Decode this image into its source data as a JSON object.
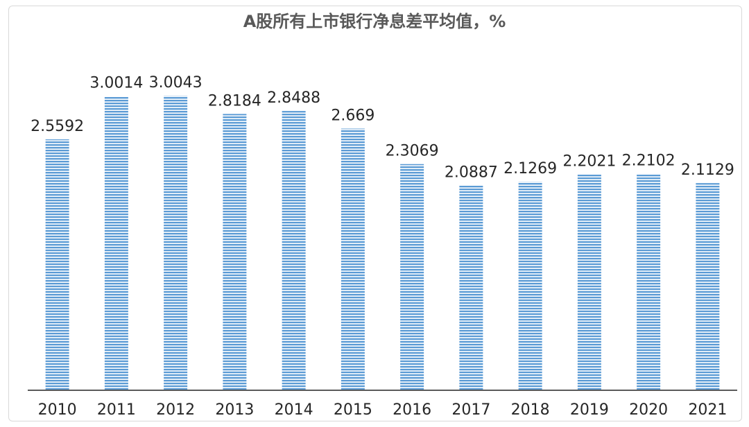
{
  "chart_data": {
    "type": "bar",
    "title": "A股所有上市银行净息差平均值，%",
    "xlabel": "",
    "ylabel": "",
    "categories": [
      "2010",
      "2011",
      "2012",
      "2013",
      "2014",
      "2015",
      "2016",
      "2017",
      "2018",
      "2019",
      "2020",
      "2021"
    ],
    "values": [
      2.5592,
      3.0014,
      3.0043,
      2.8184,
      2.8488,
      2.669,
      2.3069,
      2.0887,
      2.1269,
      2.2021,
      2.2102,
      2.1129
    ],
    "value_labels": [
      "2.5592",
      "3.0014",
      "3.0043",
      "2.8184",
      "2.8488",
      "2.669",
      "2.3069",
      "2.0887",
      "2.1269",
      "2.2021",
      "2.2102",
      "2.1129"
    ],
    "ylim": [
      0,
      3.5
    ],
    "grid": false,
    "legend": "none",
    "bar_fill": "horizontal-stripes",
    "colors": {
      "bar": "#5b9bd5",
      "bar_stripe": "#ffffff",
      "axis": "#595959",
      "title": "#595959",
      "text": "#262626"
    }
  }
}
